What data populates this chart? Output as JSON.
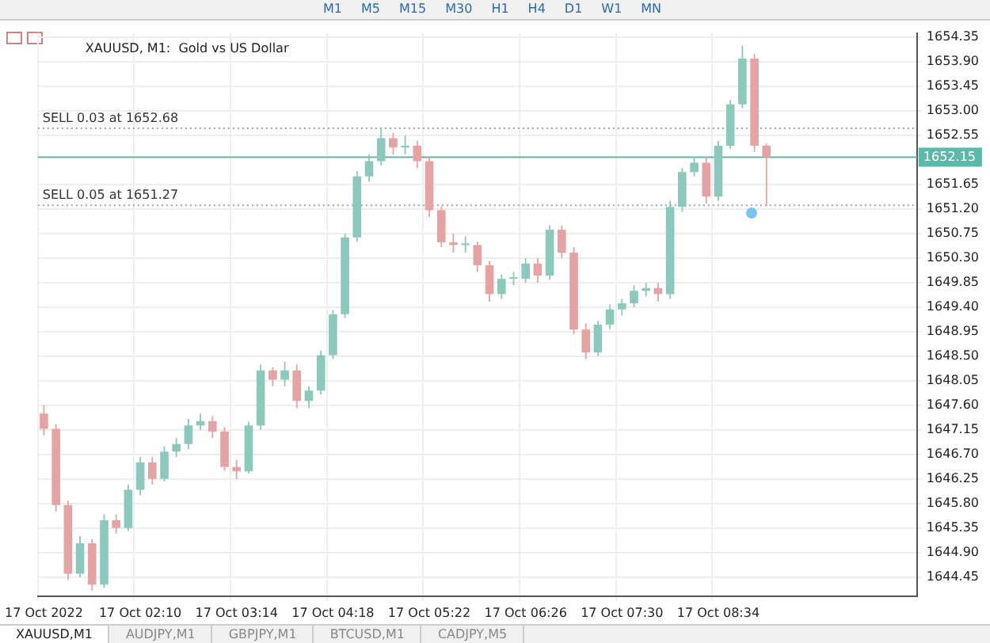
{
  "chart_data": {
    "type": "candlestick",
    "title": "XAUUSD, M1:  Gold vs US Dollar",
    "categories": [
      "17 Oct 2022",
      null,
      null,
      null,
      null,
      null,
      null,
      null,
      "17 Oct 02:10",
      null,
      null,
      null,
      null,
      null,
      null,
      null,
      "17 Oct 03:14",
      null,
      null,
      null,
      null,
      null,
      null,
      null,
      "17 Oct 04:18",
      null,
      null,
      null,
      null,
      null,
      null,
      null,
      "17 Oct 05:22",
      null,
      null,
      null,
      null,
      null,
      null,
      null,
      "17 Oct 06:26",
      null,
      null,
      null,
      null,
      null,
      null,
      null,
      "17 Oct 07:30",
      null,
      null,
      null,
      null,
      null,
      null,
      null,
      "17 Oct 08:34",
      null,
      null,
      null,
      null,
      null,
      null,
      null,
      null,
      null,
      null,
      null,
      null,
      null,
      null,
      null,
      null
    ],
    "ohlc": [
      [
        1647.45,
        1647.6,
        1647.05,
        1647.17
      ],
      [
        1647.17,
        1647.25,
        1645.65,
        1645.77
      ],
      [
        1645.77,
        1645.85,
        1644.4,
        1644.51
      ],
      [
        1644.51,
        1645.2,
        1644.45,
        1645.07
      ],
      [
        1645.07,
        1645.15,
        1644.2,
        1644.31
      ],
      [
        1644.31,
        1645.6,
        1644.25,
        1645.49
      ],
      [
        1645.49,
        1645.6,
        1645.25,
        1645.35
      ],
      [
        1645.35,
        1646.15,
        1645.3,
        1646.05
      ],
      [
        1646.05,
        1646.65,
        1645.95,
        1646.55
      ],
      [
        1646.55,
        1646.65,
        1646.15,
        1646.25
      ],
      [
        1646.25,
        1646.85,
        1646.2,
        1646.75
      ],
      [
        1646.75,
        1647.0,
        1646.65,
        1646.89
      ],
      [
        1646.89,
        1647.35,
        1646.8,
        1647.23
      ],
      [
        1647.23,
        1647.45,
        1647.15,
        1647.31
      ],
      [
        1647.31,
        1647.4,
        1647.0,
        1647.12
      ],
      [
        1647.12,
        1647.2,
        1646.4,
        1646.47
      ],
      [
        1646.47,
        1646.6,
        1646.25,
        1646.39
      ],
      [
        1646.39,
        1647.3,
        1646.35,
        1647.23
      ],
      [
        1647.23,
        1648.35,
        1647.15,
        1648.24
      ],
      [
        1648.24,
        1648.3,
        1647.95,
        1648.07
      ],
      [
        1648.07,
        1648.4,
        1647.95,
        1648.24
      ],
      [
        1648.24,
        1648.35,
        1647.55,
        1647.68
      ],
      [
        1647.68,
        1647.95,
        1647.55,
        1647.87
      ],
      [
        1647.87,
        1648.6,
        1647.8,
        1648.52
      ],
      [
        1648.52,
        1649.35,
        1648.45,
        1649.27
      ],
      [
        1649.27,
        1650.75,
        1649.2,
        1650.68
      ],
      [
        1650.68,
        1651.9,
        1650.6,
        1651.8
      ],
      [
        1651.8,
        1652.2,
        1651.7,
        1652.08
      ],
      [
        1652.08,
        1652.7,
        1652.0,
        1652.5
      ],
      [
        1652.5,
        1652.6,
        1652.2,
        1652.33
      ],
      [
        1652.33,
        1652.55,
        1652.2,
        1652.36
      ],
      [
        1652.36,
        1652.45,
        1651.95,
        1652.08
      ],
      [
        1652.08,
        1652.15,
        1651.05,
        1651.18
      ],
      [
        1651.18,
        1651.25,
        1650.5,
        1650.59
      ],
      [
        1650.59,
        1650.75,
        1650.4,
        1650.54
      ],
      [
        1650.54,
        1650.7,
        1650.4,
        1650.54
      ],
      [
        1650.54,
        1650.6,
        1650.05,
        1650.17
      ],
      [
        1650.17,
        1650.25,
        1649.5,
        1649.64
      ],
      [
        1649.64,
        1650.0,
        1649.55,
        1649.92
      ],
      [
        1649.92,
        1650.05,
        1649.8,
        1649.92
      ],
      [
        1649.92,
        1650.3,
        1649.85,
        1650.2
      ],
      [
        1650.2,
        1650.3,
        1649.85,
        1649.98
      ],
      [
        1649.98,
        1650.9,
        1649.9,
        1650.82
      ],
      [
        1650.82,
        1650.9,
        1650.3,
        1650.4
      ],
      [
        1650.4,
        1650.5,
        1648.9,
        1648.99
      ],
      [
        1648.99,
        1649.1,
        1648.45,
        1648.57
      ],
      [
        1648.57,
        1649.15,
        1648.5,
        1649.08
      ],
      [
        1649.08,
        1649.45,
        1649.0,
        1649.36
      ],
      [
        1649.36,
        1649.55,
        1649.25,
        1649.47
      ],
      [
        1649.47,
        1649.8,
        1649.4,
        1649.7
      ],
      [
        1649.7,
        1649.85,
        1649.6,
        1649.75
      ],
      [
        1649.75,
        1649.85,
        1649.5,
        1649.64
      ],
      [
        1649.64,
        1651.35,
        1649.55,
        1651.24
      ],
      [
        1651.24,
        1651.95,
        1651.15,
        1651.88
      ],
      [
        1651.88,
        1652.15,
        1651.8,
        1652.05
      ],
      [
        1652.05,
        1652.15,
        1651.3,
        1651.43
      ],
      [
        1651.43,
        1652.45,
        1651.35,
        1652.36
      ],
      [
        1652.36,
        1653.2,
        1652.3,
        1653.12
      ],
      [
        1653.12,
        1654.2,
        1653.05,
        1653.96
      ],
      [
        1653.96,
        1654.05,
        1652.25,
        1652.36
      ],
      [
        1652.36,
        1652.4,
        1651.25,
        1652.15
      ],
      null,
      null,
      null,
      null,
      null,
      null,
      null,
      null,
      null,
      null,
      null,
      null
    ],
    "colors": [
      "#e4a4a4",
      "#e4a4a4",
      "#e4a4a4",
      "#8cc8bc",
      "#e4a4a4",
      "#8cc8bc",
      "#e4a4a4",
      "#8cc8bc",
      "#8cc8bc",
      "#e4a4a4",
      "#8cc8bc",
      "#8cc8bc",
      "#8cc8bc",
      "#8cc8bc",
      "#e4a4a4",
      "#e4a4a4",
      "#e4a4a4",
      "#8cc8bc",
      "#8cc8bc",
      "#e4a4a4",
      "#8cc8bc",
      "#e4a4a4",
      "#8cc8bc",
      "#8cc8bc",
      "#8cc8bc",
      "#8cc8bc",
      "#8cc8bc",
      "#8cc8bc",
      "#8cc8bc",
      "#e4a4a4",
      "#8cc8bc",
      "#e4a4a4",
      "#e4a4a4",
      "#e4a4a4",
      "#e4a4a4",
      "#8cc8bc",
      "#e4a4a4",
      "#e4a4a4",
      "#8cc8bc",
      "#8cc8bc",
      "#8cc8bc",
      "#e4a4a4",
      "#8cc8bc",
      "#e4a4a4",
      "#e4a4a4",
      "#e4a4a4",
      "#8cc8bc",
      "#8cc8bc",
      "#8cc8bc",
      "#8cc8bc",
      "#8cc8bc",
      "#e4a4a4",
      "#8cc8bc",
      "#8cc8bc",
      "#8cc8bc",
      "#e4a4a4",
      "#8cc8bc",
      "#8cc8bc",
      "#8cc8bc",
      "#e4a4a4",
      "#e4a4a4",
      null,
      null,
      null,
      null,
      null,
      null,
      null,
      null,
      null,
      null,
      null,
      null
    ],
    "ylim": [
      1644.1,
      1654.43
    ],
    "yticks": [
      {
        "value": 1654.35,
        "label": "1654.35"
      },
      {
        "value": 1653.9,
        "label": "1653.90"
      },
      {
        "value": 1653.45,
        "label": "1653.45"
      },
      {
        "value": 1653,
        "label": "1653.00"
      },
      {
        "value": 1652.55,
        "label": "1652.55"
      },
      {
        "value": 1651.65,
        "label": "1651.65"
      },
      {
        "value": 1651.2,
        "label": "1651.20"
      },
      {
        "value": 1650.75,
        "label": "1650.75"
      },
      {
        "value": 1650.3,
        "label": "1650.30"
      },
      {
        "value": 1649.85,
        "label": "1649.85"
      },
      {
        "value": 1649.4,
        "label": "1649.40"
      },
      {
        "value": 1648.95,
        "label": "1648.95"
      },
      {
        "value": 1648.5,
        "label": "1648.50"
      },
      {
        "value": 1648.05,
        "label": "1648.05"
      },
      {
        "value": 1647.6,
        "label": "1647.60"
      },
      {
        "value": 1647.15,
        "label": "1647.15"
      },
      {
        "value": 1646.7,
        "label": "1646.70"
      },
      {
        "value": 1646.25,
        "label": "1646.25"
      },
      {
        "value": 1645.8,
        "label": "1645.80"
      },
      {
        "value": 1645.35,
        "label": "1645.35"
      },
      {
        "value": 1644.9,
        "label": "1644.90"
      },
      {
        "value": 1644.45,
        "label": "1644.45"
      }
    ],
    "grid": true,
    "legend": false,
    "ref_lines": [
      {
        "axis": "y",
        "value": 1652.68,
        "label": "SELL 0.03 at 1652.68",
        "line_style": "dotted",
        "color": "#9aa4aa"
      },
      {
        "axis": "y",
        "value": 1651.27,
        "label": "SELL 0.05 at 1651.27",
        "line_style": "dotted",
        "color": "#9aa4aa"
      },
      {
        "axis": "y",
        "value": 1652.15,
        "label": "1652.15",
        "line_style": "solid",
        "color": "#5cb8a8"
      }
    ],
    "annotations": [
      "M1",
      "M5",
      "M15",
      "M30",
      "H1",
      "H4",
      "D1",
      "W1",
      "MN",
      "XAUUSD,M1",
      "AUDJPY,M1",
      "GBPJPY,M1",
      "BTCUSD,M1",
      "CADJPY,M5"
    ]
  }
}
